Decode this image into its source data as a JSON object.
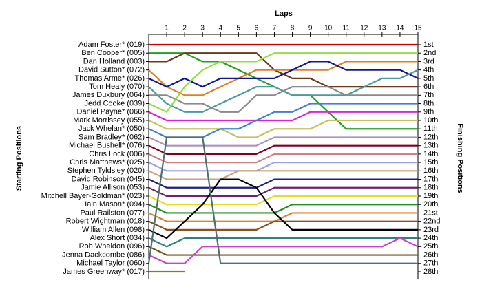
{
  "chart_data": {
    "type": "lap",
    "x_label": "Laps",
    "y_label": "Starting Positions",
    "y2_label": "Finishing Positions",
    "x": [
      0,
      1,
      2,
      3,
      4,
      5,
      6,
      7,
      8,
      9,
      10,
      11,
      12,
      13,
      14,
      15
    ],
    "xlim": [
      0,
      15
    ],
    "xticks": [
      1,
      2,
      3,
      4,
      5,
      6,
      7,
      8,
      9,
      10,
      11,
      12,
      13,
      14,
      15
    ],
    "ylim": [
      1,
      28
    ],
    "finish_labels": [
      "1st",
      "2nd",
      "3rd",
      "4th",
      "5th",
      "6th",
      "7th",
      "8th",
      "9th",
      "10th",
      "11th",
      "12th",
      "13th",
      "14th",
      "15th",
      "16th",
      "17th",
      "18th",
      "19th",
      "20th",
      "21st",
      "22nd",
      "23rd",
      "24th",
      "25th",
      "26th",
      "27th",
      "28th"
    ],
    "series": [
      {
        "name": "Adam Foster* (019)",
        "color": "#cc0000",
        "values": [
          1,
          1,
          1,
          1,
          1,
          1,
          1,
          1,
          1,
          1,
          1,
          1,
          1,
          1,
          1,
          1
        ]
      },
      {
        "name": "Ben Cooper* (005)",
        "color": "#22a022",
        "values": [
          2,
          2,
          2,
          3,
          3,
          4,
          5,
          6,
          7,
          7,
          9,
          11,
          11,
          11,
          11,
          11
        ]
      },
      {
        "name": "Dan Holland (003)",
        "color": "#6b3a1a",
        "values": [
          3,
          3,
          2,
          2,
          2,
          2,
          2,
          4,
          5,
          5,
          6,
          6,
          6,
          6,
          6,
          6
        ]
      },
      {
        "name": "David Sutton* (072)",
        "color": "#e08020",
        "values": [
          4,
          6,
          7,
          7,
          6,
          5,
          4,
          4,
          4,
          4,
          4,
          3,
          3,
          3,
          3,
          3
        ]
      },
      {
        "name": "Thomas Arme* (026)",
        "color": "#101890",
        "values": [
          5,
          6,
          5,
          6,
          5,
          5,
          5,
          5,
          4,
          3,
          3,
          4,
          4,
          4,
          4,
          5
        ]
      },
      {
        "name": "Tom Healy (070)",
        "color": "#4a9aa0",
        "values": [
          6,
          8,
          9,
          9,
          8,
          7,
          6,
          6,
          7,
          7,
          7,
          7,
          6,
          5,
          5,
          4
        ]
      },
      {
        "name": "James Duxbury (064)",
        "color": "#8a8a8a",
        "values": [
          7,
          7,
          8,
          8,
          9,
          9,
          7,
          7,
          6,
          6,
          6,
          7,
          7,
          7,
          7,
          7
        ]
      },
      {
        "name": "Jedd Cooke (039)",
        "color": "#90e040",
        "values": [
          8,
          9,
          6,
          4,
          3,
          3,
          3,
          2,
          2,
          2,
          2,
          2,
          2,
          2,
          2,
          2
        ]
      },
      {
        "name": "Daniel Payne* (066)",
        "color": "#e020e0",
        "values": [
          9,
          10,
          10,
          10,
          10,
          10,
          10,
          10,
          10,
          9,
          9,
          9,
          9,
          9,
          9,
          9
        ]
      },
      {
        "name": "Mark Morrissey (055)",
        "color": "#c8c060",
        "values": [
          10,
          11,
          11,
          11,
          11,
          12,
          12,
          11,
          11,
          11,
          10,
          10,
          10,
          10,
          10,
          10
        ]
      },
      {
        "name": "Jack Whelan* (050)",
        "color": "#4080d0",
        "values": [
          11,
          12,
          12,
          12,
          11,
          11,
          10,
          9,
          9,
          8,
          8,
          8,
          8,
          8,
          8,
          8
        ]
      },
      {
        "name": "Sam Bradley* (062)",
        "color": "#b090c0",
        "values": [
          12,
          13,
          13,
          13,
          13,
          13,
          13,
          12,
          12,
          12,
          12,
          12,
          12,
          12,
          12,
          12
        ]
      },
      {
        "name": "Michael Bushell* (076)",
        "color": "#800020",
        "values": [
          13,
          14,
          14,
          14,
          14,
          14,
          14,
          13,
          13,
          13,
          13,
          13,
          13,
          13,
          13,
          13
        ]
      },
      {
        "name": "Chris Lock (006)",
        "color": "#d08080",
        "values": [
          14,
          15,
          15,
          15,
          15,
          15,
          15,
          14,
          14,
          14,
          14,
          14,
          14,
          14,
          14,
          14
        ]
      },
      {
        "name": "Chris Matthews* (025)",
        "color": "#a0a0e0",
        "values": [
          15,
          16,
          16,
          16,
          16,
          16,
          16,
          15,
          15,
          15,
          15,
          15,
          15,
          15,
          15,
          15
        ]
      },
      {
        "name": "Stephen Tyldsley (020)",
        "color": "#d0a070",
        "values": [
          16,
          17,
          17,
          17,
          17,
          16,
          16,
          16,
          16,
          16,
          16,
          16,
          16,
          16,
          16,
          16
        ]
      },
      {
        "name": "David Robinson (045)",
        "color": "#202080",
        "values": [
          17,
          18,
          18,
          18,
          18,
          18,
          18,
          17,
          17,
          17,
          17,
          17,
          17,
          17,
          17,
          17
        ]
      },
      {
        "name": "Jamie Allison (053)",
        "color": "#702070",
        "values": [
          18,
          19,
          19,
          19,
          19,
          19,
          19,
          18,
          18,
          18,
          18,
          18,
          18,
          18,
          18,
          18
        ]
      },
      {
        "name": "Mitchell Bayer-Goldman* (023)",
        "color": "#e0e020",
        "values": [
          19,
          20,
          20,
          20,
          20,
          20,
          20,
          19,
          19,
          19,
          19,
          19,
          19,
          19,
          19,
          19
        ]
      },
      {
        "name": "Iain Mason* (094)",
        "color": "#209020",
        "values": [
          20,
          21,
          21,
          21,
          21,
          21,
          21,
          21,
          20,
          20,
          20,
          20,
          20,
          20,
          20,
          20
        ]
      },
      {
        "name": "Paul Railston (077)",
        "color": "#e08030",
        "values": [
          21,
          22,
          22,
          22,
          22,
          22,
          22,
          22,
          21,
          21,
          21,
          21,
          21,
          21,
          21,
          21
        ]
      },
      {
        "name": "Robert Wightman (018)",
        "color": "#8a5020",
        "values": [
          22,
          23,
          23,
          23,
          23,
          23,
          23,
          22,
          22,
          22,
          22,
          22,
          22,
          22,
          22,
          22
        ]
      },
      {
        "name": "William Allen (098)",
        "color": "#000000",
        "values": [
          23,
          24,
          22,
          20,
          17,
          17,
          18,
          21,
          23,
          23,
          23,
          23,
          23,
          23,
          23,
          23
        ]
      },
      {
        "name": "Alex Short (034)",
        "color": "#308080",
        "values": [
          24,
          25,
          24,
          24,
          24,
          24,
          24,
          24,
          24,
          24,
          24,
          24,
          24,
          24,
          24,
          24
        ]
      },
      {
        "name": "Rob Wheldon (096)",
        "color": "#7a5020",
        "values": [
          25,
          26,
          26,
          26,
          26,
          26,
          26,
          26,
          26,
          26,
          26,
          26,
          26,
          26,
          26,
          26
        ]
      },
      {
        "name": "Jenna Dackcombe (086)",
        "color": "#d040d0",
        "values": [
          26,
          27,
          27,
          25,
          25,
          25,
          25,
          25,
          25,
          25,
          25,
          25,
          25,
          25,
          24,
          25
        ]
      },
      {
        "name": "Michael Taylor (060)",
        "color": "#507070",
        "values": [
          27,
          12,
          12,
          12,
          27,
          27,
          27,
          27,
          27,
          27,
          27,
          27,
          27,
          27,
          27,
          27
        ]
      },
      {
        "name": "James Greenway* (017)",
        "color": "#808020",
        "values": [
          28,
          28,
          28,
          null,
          null,
          null,
          null,
          null,
          null,
          null,
          null,
          null,
          null,
          null,
          null,
          null
        ]
      }
    ]
  }
}
